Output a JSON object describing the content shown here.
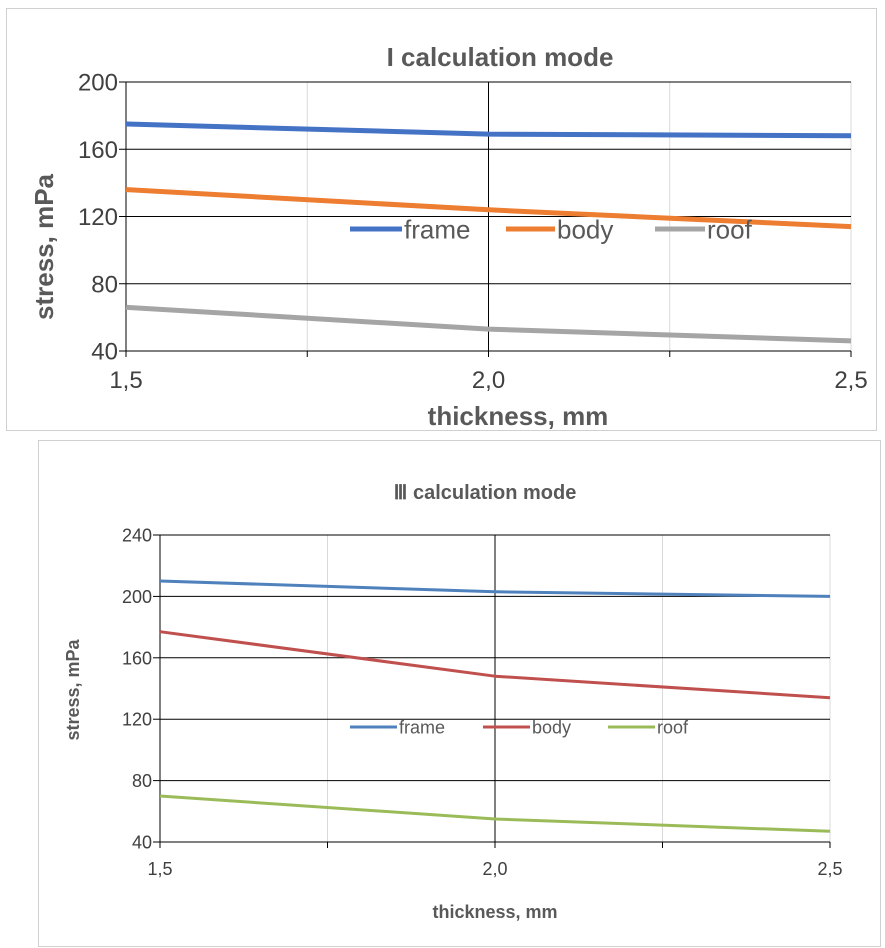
{
  "chart_data": [
    {
      "type": "line",
      "title": "I calculation mode",
      "xlabel": "thickness, mm",
      "ylabel": "stress, mPa",
      "x": [
        1.5,
        2.0,
        2.5
      ],
      "x_tick_labels": [
        "1,5",
        "2,0",
        "2,5"
      ],
      "ylim": [
        40,
        200
      ],
      "y_ticks": [
        40,
        80,
        120,
        160,
        200
      ],
      "grid": true,
      "legend_position": "center",
      "series": [
        {
          "name": "frame",
          "color": "#4472C4",
          "values": [
            175,
            169,
            168
          ]
        },
        {
          "name": "body",
          "color": "#ED7D31",
          "values": [
            136,
            124,
            114
          ]
        },
        {
          "name": "roof",
          "color": "#A5A5A5",
          "values": [
            66,
            53,
            46
          ]
        }
      ]
    },
    {
      "type": "line",
      "title": "Ⅲ calculation mode",
      "xlabel": "thickness, mm",
      "ylabel": "stress, mPa",
      "x": [
        1.5,
        2.0,
        2.5
      ],
      "x_tick_labels": [
        "1,5",
        "2,0",
        "2,5"
      ],
      "ylim": [
        40,
        240
      ],
      "y_ticks": [
        40,
        80,
        120,
        160,
        200,
        240
      ],
      "grid": true,
      "legend_position": "center",
      "series": [
        {
          "name": "frame",
          "color": "#4F81BD",
          "values": [
            210,
            203,
            200
          ]
        },
        {
          "name": "body",
          "color": "#C0504D",
          "values": [
            177,
            148,
            134
          ]
        },
        {
          "name": "roof",
          "color": "#9BBB59",
          "values": [
            70,
            55,
            47
          ]
        }
      ]
    }
  ]
}
